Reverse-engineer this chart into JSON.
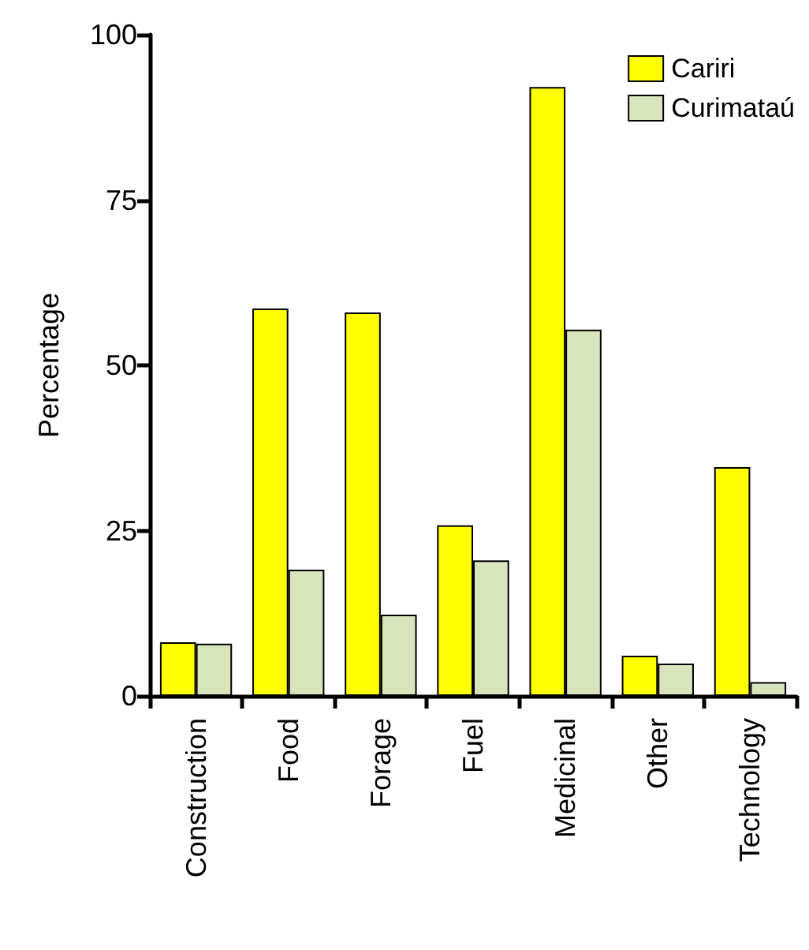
{
  "chart_data": {
    "type": "bar",
    "ylabel": "Percentage",
    "categories": [
      "Construction",
      "Food",
      "Forage",
      "Fuel",
      "Medicinal",
      "Other",
      "Technology"
    ],
    "series": [
      {
        "name": "Cariri",
        "color": "#ffff00",
        "values": [
          8.1,
          58.6,
          58.0,
          25.8,
          92.1,
          6.1,
          34.6
        ]
      },
      {
        "name": "Curimataú",
        "color": "#d8e4bc",
        "values": [
          7.9,
          19.1,
          12.3,
          20.5,
          55.4,
          4.9,
          2.1
        ]
      }
    ],
    "ylim": [
      0,
      100
    ],
    "yticks": [
      0,
      25,
      50,
      75,
      100
    ],
    "grid": false,
    "legend": "top right"
  }
}
